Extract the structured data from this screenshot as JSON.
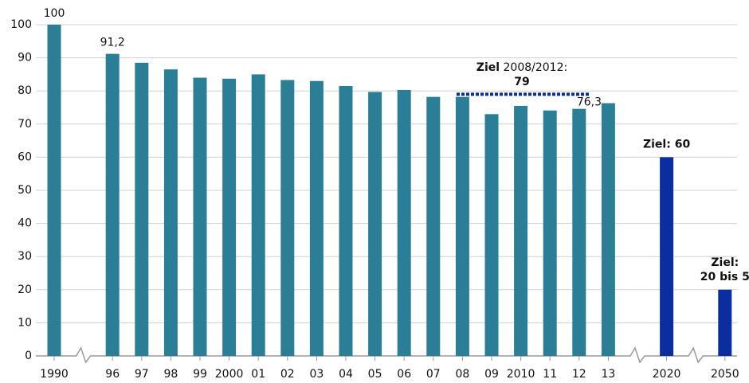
{
  "chart_data": {
    "type": "bar",
    "categories": [
      "1990",
      "96",
      "97",
      "98",
      "99",
      "2000",
      "01",
      "02",
      "03",
      "04",
      "05",
      "06",
      "07",
      "08",
      "09",
      "2010",
      "11",
      "12",
      "13",
      "2020",
      "2050"
    ],
    "values": [
      100,
      91.2,
      88.5,
      86.5,
      84,
      83.7,
      85,
      83.3,
      83,
      81.5,
      79.7,
      80.3,
      78.2,
      78.2,
      73,
      75.5,
      74.1,
      74.6,
      76.3,
      60,
      20
    ],
    "value_labels": [
      "100",
      "91,2",
      null,
      null,
      null,
      null,
      null,
      null,
      null,
      null,
      null,
      null,
      null,
      null,
      null,
      null,
      null,
      null,
      "76,3",
      null,
      null
    ],
    "colors": [
      "#2a7f96",
      "#2a7f96",
      "#2a7f96",
      "#2a7f96",
      "#2a7f96",
      "#2a7f96",
      "#2a7f96",
      "#2a7f96",
      "#2a7f96",
      "#2a7f96",
      "#2a7f96",
      "#2a7f96",
      "#2a7f96",
      "#2a7f96",
      "#2a7f96",
      "#2a7f96",
      "#2a7f96",
      "#2a7f96",
      "#2a7f96",
      "#0a2ea0",
      "#0a2ea0"
    ],
    "ylim": [
      0,
      100
    ],
    "yticks": [
      0,
      10,
      20,
      30,
      40,
      50,
      60,
      70,
      80,
      90,
      100
    ],
    "grid": true,
    "target_line": {
      "value": 79,
      "color": "#0a2ea0",
      "label_bold": "Ziel",
      "label": "2008/2012:",
      "value_label": "79"
    },
    "annotations": [
      {
        "category": "2020",
        "lines": [
          "Ziel: 60"
        ]
      },
      {
        "category": "2050",
        "lines": [
          "Ziel:",
          "20 bis 5"
        ]
      }
    ]
  }
}
